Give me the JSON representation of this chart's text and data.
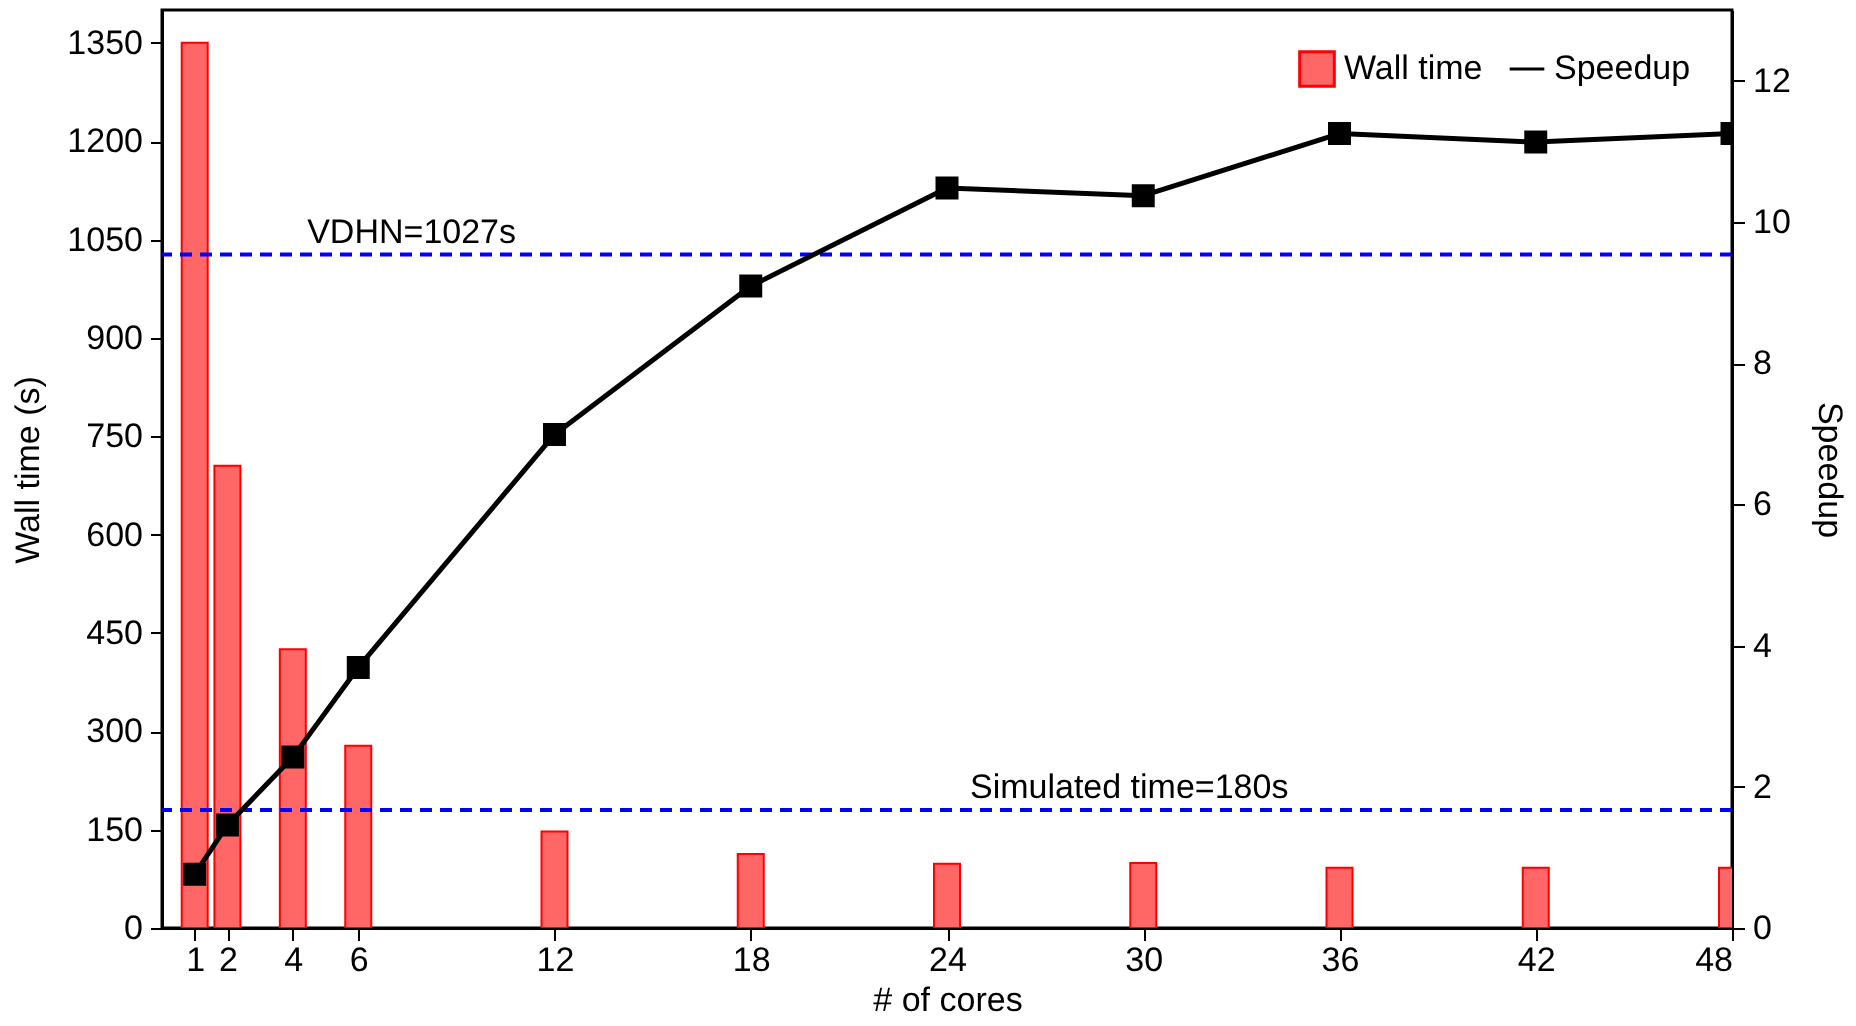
{
  "chart_data": {
    "type": "bar",
    "xlabel": "# of cores",
    "ylabel": "Wall time (s)",
    "y2label": "Speedup",
    "x": [
      1,
      2,
      4,
      6,
      12,
      18,
      24,
      30,
      36,
      42,
      48
    ],
    "series": [
      {
        "name": "Wall time",
        "color": "#ff6666",
        "values": [
          1350,
          705,
          425,
          278,
          147,
          113,
          98,
          99,
          92,
          92,
          92
        ]
      },
      {
        "name": "Speedup",
        "type": "line",
        "axis": "y2",
        "color": "#000000",
        "marker": "square",
        "line_style": "solid",
        "values": [
          0.76,
          1.46,
          2.42,
          3.69,
          6.99,
          9.09,
          10.48,
          10.37,
          11.25,
          11.13,
          11.25
        ]
      }
    ],
    "xlim": [
      0,
      48
    ],
    "xticks": [
      1,
      2,
      4,
      6,
      12,
      18,
      24,
      30,
      36,
      42,
      48
    ],
    "ylim": [
      0,
      1400
    ],
    "yticks": [
      0,
      150,
      300,
      450,
      600,
      750,
      900,
      1050,
      1200,
      1350
    ],
    "y2lim": [
      0,
      13
    ],
    "y2ticks": [
      0,
      2,
      4,
      6,
      8,
      10,
      12
    ],
    "ref_lines": [
      {
        "axis": "y",
        "value": 1027,
        "label": "VDHN=1027s",
        "color": "#0000ff",
        "line_style": "dashed"
      },
      {
        "axis": "y",
        "value": 180,
        "label": "Simulated time=180s",
        "color": "#0000ff",
        "line_style": "dashed"
      }
    ],
    "legend": "top right",
    "grid": false
  }
}
